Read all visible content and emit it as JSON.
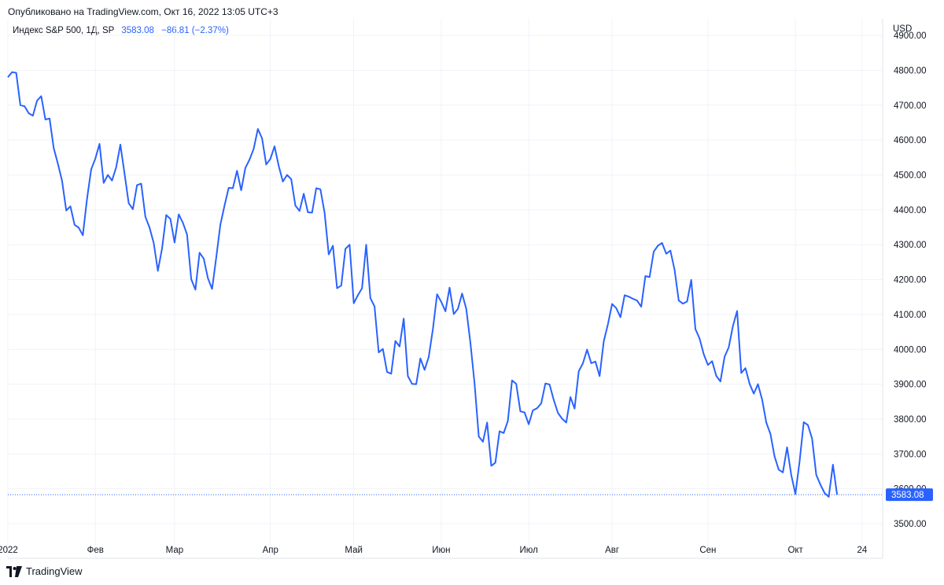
{
  "header": {
    "published": "Опубликовано на TradingView.com, Окт 16, 2022 13:05 UTC+3",
    "symbol": "Индекс S&P 500, 1Д, SP",
    "last_value": "3583.08",
    "change": "−86.81 (−2.37%)"
  },
  "footer": {
    "brand": "TradingView"
  },
  "colors": {
    "line": "#2962ff",
    "grid": "#f0f3fa",
    "text": "#131722"
  },
  "chart_data": {
    "type": "line",
    "title": "Индекс S&P 500, 1Д, SP",
    "currency": "USD",
    "ylim": [
      3460,
      4900
    ],
    "y_ticks": [
      3500,
      3600,
      3700,
      3800,
      3900,
      4000,
      4100,
      4200,
      4300,
      4400,
      4500,
      4600,
      4700,
      4800,
      4900
    ],
    "y_tick_labels": [
      "3500.00",
      "3600.00",
      "3700.00",
      "3800.00",
      "3900.00",
      "4000.00",
      "4100.00",
      "4200.00",
      "4300.00",
      "4400.00",
      "4500.00",
      "4600.00",
      "4700.00",
      "4800.00",
      "4900.00"
    ],
    "x_range": [
      0,
      204
    ],
    "x_ticks": [
      {
        "index": 0,
        "label": "2022"
      },
      {
        "index": 21,
        "label": "Фев"
      },
      {
        "index": 40,
        "label": "Мар"
      },
      {
        "index": 63,
        "label": "Апр"
      },
      {
        "index": 83,
        "label": "Май"
      },
      {
        "index": 104,
        "label": "Июн"
      },
      {
        "index": 125,
        "label": "Июл"
      },
      {
        "index": 145,
        "label": "Авг"
      },
      {
        "index": 168,
        "label": "Сен"
      },
      {
        "index": 189,
        "label": "Окт"
      },
      {
        "index": 205,
        "label": "24"
      }
    ],
    "last_price": 3583.08,
    "last_price_label": "3583.08",
    "series": [
      {
        "name": "S&P 500",
        "values": [
          4780,
          4795,
          4793,
          4700,
          4697,
          4677,
          4670,
          4713,
          4726,
          4659,
          4662,
          4577,
          4532,
          4483,
          4398,
          4410,
          4357,
          4349,
          4327,
          4431,
          4516,
          4547,
          4589,
          4477,
          4500,
          4484,
          4522,
          4587,
          4504,
          4419,
          4402,
          4471,
          4475,
          4380,
          4349,
          4305,
          4225,
          4289,
          4385,
          4374,
          4306,
          4387,
          4363,
          4329,
          4201,
          4171,
          4277,
          4260,
          4204,
          4173,
          4262,
          4357,
          4412,
          4463,
          4462,
          4512,
          4456,
          4520,
          4544,
          4575,
          4632,
          4605,
          4530,
          4546,
          4582,
          4526,
          4481,
          4500,
          4488,
          4412,
          4397,
          4446,
          4393,
          4392,
          4462,
          4459,
          4392,
          4272,
          4297,
          4175,
          4183,
          4288,
          4300,
          4132,
          4155,
          4175,
          4300,
          4147,
          4123,
          3991,
          4001,
          3935,
          3930,
          4024,
          4008,
          4088,
          3923,
          3901,
          3900,
          3974,
          3941,
          3978,
          4058,
          4158,
          4136,
          4109,
          4177,
          4101,
          4116,
          4160,
          4116,
          4018,
          3901,
          3750,
          3735,
          3790,
          3666,
          3675,
          3765,
          3760,
          3795,
          3911,
          3901,
          3822,
          3819,
          3785,
          3825,
          3831,
          3845,
          3902,
          3899,
          3855,
          3818,
          3801,
          3790,
          3863,
          3830,
          3937,
          3960,
          3999,
          3960,
          3965,
          3923,
          4023,
          4072,
          4130,
          4118,
          4092,
          4155,
          4151,
          4145,
          4140,
          4122,
          4210,
          4207,
          4280,
          4297,
          4305,
          4274,
          4283,
          4228,
          4140,
          4131,
          4137,
          4199,
          4058,
          4031,
          3986,
          3955,
          3966,
          3924,
          3908,
          3979,
          4006,
          4067,
          4110,
          3932,
          3946,
          3901,
          3873,
          3900,
          3856,
          3790,
          3757,
          3693,
          3655,
          3647,
          3719,
          3640,
          3585,
          3678,
          3791,
          3783,
          3744,
          3640,
          3612,
          3588,
          3577,
          3669,
          3583
        ]
      }
    ]
  }
}
